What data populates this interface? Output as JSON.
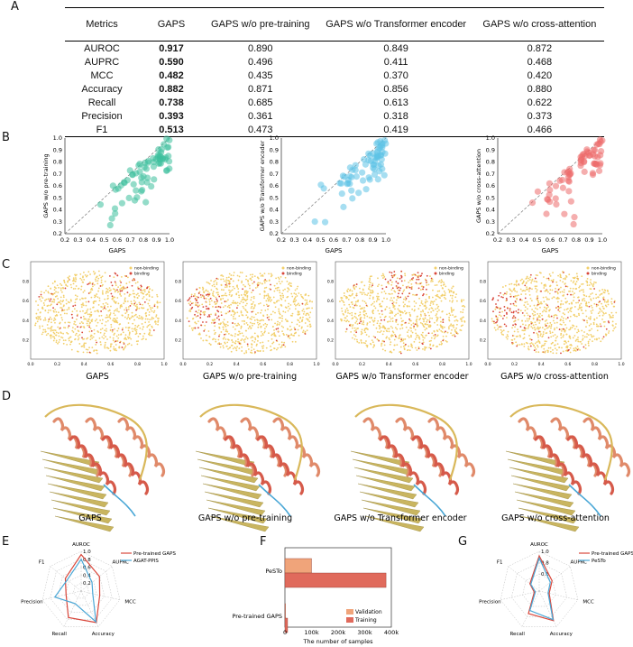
{
  "panel_labels": {
    "a": "A",
    "b": "B",
    "c": "C",
    "d": "D",
    "e": "E",
    "f": "F",
    "g": "G"
  },
  "table": {
    "headers": [
      "Metrics",
      "GAPS",
      "GAPS w/o pre-training",
      "GAPS w/o Transformer encoder",
      "GAPS w/o cross-attention"
    ],
    "rows": [
      [
        "AUROC",
        "0.917",
        "0.890",
        "0.849",
        "0.872"
      ],
      [
        "AUPRC",
        "0.590",
        "0.496",
        "0.411",
        "0.468"
      ],
      [
        "MCC",
        "0.482",
        "0.435",
        "0.370",
        "0.420"
      ],
      [
        "Accuracy",
        "0.882",
        "0.871",
        "0.856",
        "0.880"
      ],
      [
        "Recall",
        "0.738",
        "0.685",
        "0.613",
        "0.622"
      ],
      [
        "Precision",
        "0.393",
        "0.361",
        "0.318",
        "0.373"
      ],
      [
        "F1",
        "0.513",
        "0.473",
        "0.419",
        "0.466"
      ]
    ]
  },
  "scatter_panels": {
    "xlabel": "GAPS",
    "ticks": [
      "0.2",
      "0.3",
      "0.4",
      "0.5",
      "0.6",
      "0.7",
      "0.8",
      "0.9",
      "1.0"
    ],
    "plots": [
      {
        "ylabel": "GAPS w/o pre-training",
        "color": "#3dbf9c"
      },
      {
        "ylabel": "GAPS w/o Transformer encoder",
        "color": "#5cc3e6"
      },
      {
        "ylabel": "GAPS w/o cross-attention",
        "color": "#ec6b6b"
      }
    ]
  },
  "tsne_panels": {
    "legend": [
      "non-binding",
      "binding"
    ],
    "nonbinding_color": "#f2cf6a",
    "binding_color": "#d9473b",
    "x_ticks": [
      "0.0",
      "0.2",
      "0.4",
      "0.6",
      "0.8",
      "1.0"
    ],
    "y_ticks": [
      "1.0",
      "0.8",
      "0.6",
      "0.4",
      "0.2",
      "0.0"
    ],
    "captions": [
      "GAPS",
      "GAPS w/o pre-training",
      "GAPS w/o Transformer encoder",
      "GAPS w/o cross-attention"
    ]
  },
  "structure_captions": [
    "GAPS",
    "GAPS w/o pre-training",
    "GAPS w/o Transformer encoder",
    "GAPS w/o cross-attention"
  ],
  "chart_data": [
    {
      "type": "radar",
      "title": "E",
      "axes": [
        "AUROC",
        "AUPRC",
        "MCC",
        "Accuracy",
        "Recall",
        "Precision",
        "F1"
      ],
      "rings": [
        "0.2",
        "0.4",
        "0.6",
        "0.8",
        "1.0"
      ],
      "series": [
        {
          "name": "Pre-trained GAPS",
          "color": "#d9473b",
          "values": [
            0.92,
            0.59,
            0.48,
            0.88,
            0.74,
            0.39,
            0.51
          ]
        },
        {
          "name": "AGAT-PPIS",
          "color": "#4aa7d6",
          "values": [
            0.8,
            0.35,
            0.3,
            0.86,
            0.35,
            0.68,
            0.45
          ]
        }
      ]
    },
    {
      "type": "bar",
      "title": "F",
      "orientation": "horizontal",
      "categories": [
        "PeSTo",
        "Pre-trained GAPS"
      ],
      "series": [
        {
          "name": "Validation",
          "color": "#f0a47a",
          "values": [
            100000,
            2000
          ]
        },
        {
          "name": "Training",
          "color": "#e06a5c",
          "values": [
            380000,
            10000
          ]
        }
      ],
      "xlabel": "The number of samples",
      "x_ticks": [
        "0",
        "100k",
        "200k",
        "300k",
        "400k"
      ],
      "xlim": [
        0,
        400000
      ]
    },
    {
      "type": "radar",
      "title": "G",
      "axes": [
        "AUROC",
        "AUPRC",
        "MCC",
        "Accuracy",
        "Recall",
        "Precision",
        "F1"
      ],
      "rings": [
        "0.6",
        "0.8",
        "1.0"
      ],
      "series": [
        {
          "name": "Pre-trained GAPS",
          "color": "#d9473b",
          "values": [
            0.92,
            0.59,
            0.48,
            0.88,
            0.74,
            0.39,
            0.51
          ]
        },
        {
          "name": "PeSTo",
          "color": "#4aa7d6",
          "values": [
            0.88,
            0.55,
            0.46,
            0.86,
            0.68,
            0.37,
            0.49
          ]
        }
      ]
    }
  ]
}
